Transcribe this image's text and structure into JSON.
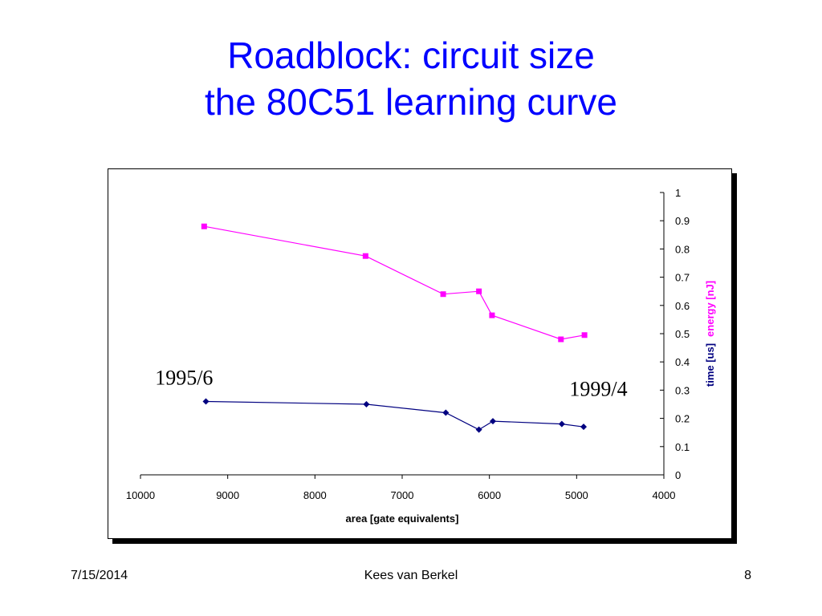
{
  "slide": {
    "title_line1": "Roadblock: circuit size",
    "title_line2": "the 80C51 learning curve"
  },
  "footer": {
    "date": "7/15/2014",
    "author": "Kees van Berkel",
    "page": "8"
  },
  "colors": {
    "title": "#0000ff",
    "energy": "#ff00ff",
    "time": "#000080"
  },
  "chart_data": {
    "type": "line",
    "title": "",
    "xlabel": "area [gate equivalents]",
    "ylabel_parts": [
      "time [us]",
      "energy [nJ]"
    ],
    "x_reversed": true,
    "xlim": [
      10000,
      4000
    ],
    "ylim": [
      0,
      1
    ],
    "x_ticks": [
      10000,
      9000,
      8000,
      7000,
      6000,
      5000,
      4000
    ],
    "y_ticks": [
      0,
      0.1,
      0.2,
      0.3,
      0.4,
      0.5,
      0.6,
      0.7,
      0.8,
      0.9,
      1
    ],
    "grid": false,
    "y_axis_side": "right",
    "series": [
      {
        "name": "energy [nJ]",
        "marker": "square",
        "color": "#ff00ff",
        "x": [
          9270,
          7420,
          6530,
          6120,
          5970,
          5180,
          4910
        ],
        "y": [
          0.88,
          0.775,
          0.64,
          0.65,
          0.565,
          0.48,
          0.495
        ]
      },
      {
        "name": "time [us]",
        "marker": "diamond",
        "color": "#000080",
        "x": [
          9250,
          7410,
          6500,
          6120,
          5960,
          5170,
          4920
        ],
        "y": [
          0.26,
          0.25,
          0.22,
          0.16,
          0.19,
          0.18,
          0.17
        ]
      }
    ],
    "annotations": [
      {
        "text": "1995/6",
        "x": 9500,
        "y": 0.32
      },
      {
        "text": "1999/4",
        "x": 4750,
        "y": 0.28
      }
    ]
  }
}
